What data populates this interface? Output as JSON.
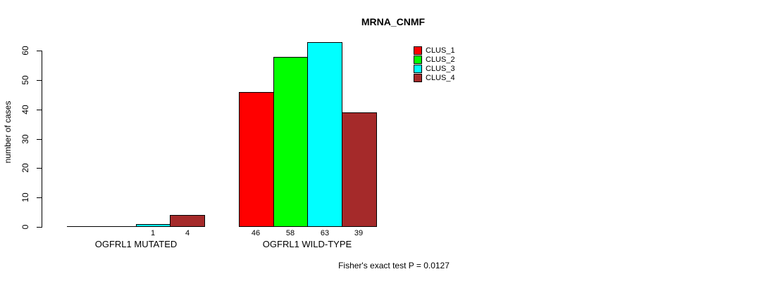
{
  "title": "MRNA_CNMF",
  "footer": "Fisher's exact test P = 0.0127",
  "chart_data": {
    "type": "bar",
    "title": "MRNA_CNMF",
    "xlabel": "",
    "ylabel": "number of cases",
    "ylim": [
      0,
      60
    ],
    "yticks": [
      0,
      10,
      20,
      30,
      40,
      50,
      60
    ],
    "grid": false,
    "legend_position": "top-right",
    "bar_border_color": "#000000",
    "background_color": "#ffffff",
    "categories": [
      "OGFRL1 MUTATED",
      "OGFRL1 WILD-TYPE"
    ],
    "series": [
      {
        "name": "CLUS_1",
        "color": "#FF0000",
        "values": [
          0,
          46
        ]
      },
      {
        "name": "CLUS_2",
        "color": "#00FF00",
        "values": [
          0,
          58
        ]
      },
      {
        "name": "CLUS_3",
        "color": "#00FFFF",
        "values": [
          1,
          63
        ]
      },
      {
        "name": "CLUS_4",
        "color": "#A52A2A",
        "values": [
          4,
          39
        ]
      }
    ],
    "bar_value_labels_shown_for_nonzero_only": true,
    "annotation": "Fisher's exact test P = 0.0127"
  }
}
